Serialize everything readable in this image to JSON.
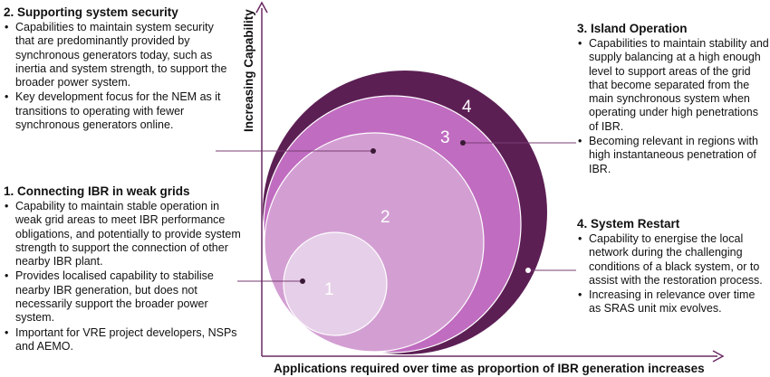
{
  "axes": {
    "y_label": "Increasing Capability",
    "x_label": "Applications required over time as proportion of IBR generation increases"
  },
  "circles": [
    {
      "number": "1",
      "fill": "#e6cfe8"
    },
    {
      "number": "2",
      "fill": "#d39fd3"
    },
    {
      "number": "3",
      "fill": "#c06cc0"
    },
    {
      "number": "4",
      "fill": "#5c1f54"
    }
  ],
  "colors": {
    "axis": "#6a2a63",
    "leader": "#7a3d73"
  },
  "panels": {
    "security": {
      "title": "2. Supporting system security",
      "bullets": [
        "Capabilities to maintain system security that are predominantly provided by synchronous generators today, such as inertia and system strength, to support the broader power system.",
        "Key development focus for the NEM as it transitions to operating with fewer synchronous generators online."
      ]
    },
    "ibr": {
      "title": "1. Connecting IBR in weak grids",
      "bullets": [
        "Capability to maintain stable operation in weak grid areas to meet IBR performance obligations, and potentially to provide system strength to support the connection of other nearby IBR plant.",
        "Provides localised capability to stabilise nearby IBR generation, but does not necessarily support the broader power system.",
        "Important for VRE project developers, NSPs and AEMO."
      ]
    },
    "island": {
      "title": "3. Island Operation",
      "bullets": [
        "Capabilities to maintain stability and supply balancing at a high enough level to support areas of the grid that become separated from the main synchronous system when operating under high penetrations of IBR.",
        "Becoming relevant in regions with high instantaneous penetration of IBR."
      ]
    },
    "restart": {
      "title": "4. System Restart",
      "bullets": [
        "Capability to energise the local network during the challenging conditions of a black system, or to assist with the restoration process.",
        "Increasing in relevance over time as SRAS unit mix evolves."
      ]
    }
  }
}
